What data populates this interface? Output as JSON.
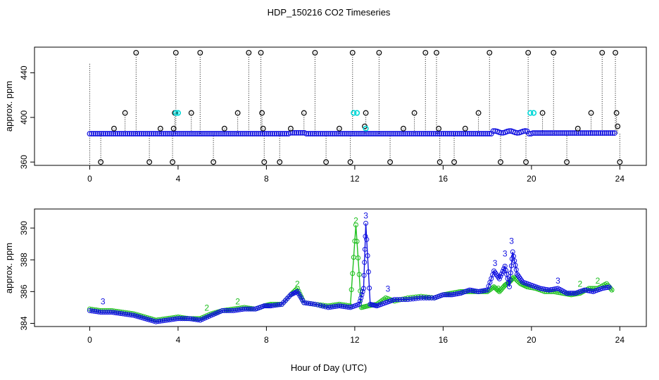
{
  "title": "HDP_150216  CO2 Timeseries",
  "xlabel": "Hour of Day (UTC)",
  "colors": {
    "axis": "#000000",
    "blue": "#1010e0",
    "green": "#20c020",
    "cyan": "#00d8d8",
    "dark": "#111111"
  },
  "chart_data": [
    {
      "type": "scatter",
      "name": "panel-top",
      "ylabel": "approx. ppm",
      "xlim": [
        -2.5,
        25.2
      ],
      "ylim": [
        357,
        463
      ],
      "xticks": [
        0,
        4,
        8,
        12,
        16,
        20,
        24
      ],
      "yticks": [
        360,
        400,
        440
      ],
      "baseline_note": "continuous near 384-387 ppm series, points drawn as circles",
      "outlier_levels": [
        360,
        385,
        394,
        404,
        458
      ],
      "outliers": [
        {
          "x": 0.5,
          "y": 360
        },
        {
          "x": 1.1,
          "y": 390
        },
        {
          "x": 1.6,
          "y": 404
        },
        {
          "x": 2.1,
          "y": 458
        },
        {
          "x": 2.7,
          "y": 360
        },
        {
          "x": 3.2,
          "y": 390
        },
        {
          "x": 3.75,
          "y": 360
        },
        {
          "x": 3.8,
          "y": 390
        },
        {
          "x": 3.85,
          "y": 404
        },
        {
          "x": 3.9,
          "y": 458
        },
        {
          "x": 4.6,
          "y": 404
        },
        {
          "x": 5.0,
          "y": 458
        },
        {
          "x": 5.6,
          "y": 360
        },
        {
          "x": 6.1,
          "y": 390
        },
        {
          "x": 6.7,
          "y": 404
        },
        {
          "x": 7.2,
          "y": 458
        },
        {
          "x": 7.75,
          "y": 458
        },
        {
          "x": 7.8,
          "y": 404
        },
        {
          "x": 7.85,
          "y": 390
        },
        {
          "x": 7.9,
          "y": 360
        },
        {
          "x": 8.6,
          "y": 360
        },
        {
          "x": 9.1,
          "y": 390
        },
        {
          "x": 9.7,
          "y": 404
        },
        {
          "x": 10.2,
          "y": 458
        },
        {
          "x": 10.7,
          "y": 360
        },
        {
          "x": 11.3,
          "y": 390
        },
        {
          "x": 11.8,
          "y": 360
        },
        {
          "x": 11.9,
          "y": 458
        },
        {
          "x": 12.5,
          "y": 404
        },
        {
          "x": 12.45,
          "y": 392
        },
        {
          "x": 13.1,
          "y": 458
        },
        {
          "x": 13.6,
          "y": 360
        },
        {
          "x": 14.2,
          "y": 390
        },
        {
          "x": 14.7,
          "y": 404
        },
        {
          "x": 15.2,
          "y": 458
        },
        {
          "x": 15.7,
          "y": 458
        },
        {
          "x": 15.8,
          "y": 390
        },
        {
          "x": 15.85,
          "y": 360
        },
        {
          "x": 16.5,
          "y": 360
        },
        {
          "x": 17.0,
          "y": 390
        },
        {
          "x": 17.6,
          "y": 404
        },
        {
          "x": 18.1,
          "y": 458
        },
        {
          "x": 18.6,
          "y": 360
        },
        {
          "x": 19.75,
          "y": 360
        },
        {
          "x": 19.85,
          "y": 458
        },
        {
          "x": 20.5,
          "y": 404
        },
        {
          "x": 21.0,
          "y": 458
        },
        {
          "x": 21.6,
          "y": 360
        },
        {
          "x": 22.1,
          "y": 390
        },
        {
          "x": 22.7,
          "y": 404
        },
        {
          "x": 23.2,
          "y": 458
        },
        {
          "x": 23.8,
          "y": 458
        },
        {
          "x": 23.85,
          "y": 404
        },
        {
          "x": 23.9,
          "y": 392
        },
        {
          "x": 24.0,
          "y": 360
        }
      ],
      "cyan_points": [
        {
          "x": 3.9,
          "y": 404
        },
        {
          "x": 4.0,
          "y": 404
        },
        {
          "x": 11.95,
          "y": 404
        },
        {
          "x": 12.1,
          "y": 404
        },
        {
          "x": 19.95,
          "y": 404
        },
        {
          "x": 20.1,
          "y": 404
        },
        {
          "x": 12.5,
          "y": 390
        }
      ]
    },
    {
      "type": "line",
      "name": "panel-bottom",
      "ylabel": "approx. ppm",
      "xlim": [
        -2.5,
        25.2
      ],
      "ylim": [
        383.8,
        391.2
      ],
      "xticks": [
        0,
        4,
        8,
        12,
        16,
        20,
        24
      ],
      "yticks": [
        384,
        386,
        388,
        390
      ],
      "series": [
        {
          "name": "2",
          "symbol": "2",
          "color": "green",
          "x": [
            0,
            0.5,
            1,
            1.5,
            2,
            2.5,
            3,
            3.5,
            4,
            4.5,
            5,
            5.5,
            6,
            6.5,
            7,
            7.5,
            7.9,
            8.2,
            8.7,
            9.1,
            9.4,
            9.7,
            10.2,
            10.8,
            11.3,
            11.8,
            12.05,
            12.3,
            12.6,
            13.0,
            13.4,
            13.8,
            14.4,
            15.0,
            15.6,
            16.0,
            16.4,
            16.8,
            17.2,
            17.6,
            18.0,
            18.3,
            18.55,
            18.8,
            19.0,
            19.2,
            19.5,
            19.8,
            20.2,
            20.6,
            21.0,
            21.4,
            21.8,
            22.2,
            22.6,
            23.0,
            23.4,
            23.7
          ],
          "y": [
            384.9,
            384.8,
            384.8,
            384.7,
            384.6,
            384.4,
            384.2,
            384.3,
            384.4,
            384.3,
            384.3,
            384.6,
            384.8,
            384.9,
            385.0,
            384.9,
            385.1,
            385.2,
            385.2,
            385.8,
            386.2,
            385.3,
            385.2,
            385.1,
            385.2,
            385.1,
            390.2,
            385.0,
            385.1,
            385.2,
            385.6,
            385.4,
            385.6,
            385.7,
            385.6,
            385.8,
            385.9,
            386.0,
            386.0,
            386.0,
            386.0,
            386.3,
            386.0,
            386.4,
            386.6,
            386.9,
            386.5,
            386.3,
            386.2,
            386.0,
            386.0,
            385.9,
            385.8,
            385.9,
            386.2,
            386.2,
            386.5,
            386.0
          ]
        },
        {
          "name": "3",
          "symbol": "3",
          "color": "blue",
          "x": [
            0,
            0.5,
            1,
            1.5,
            2,
            2.5,
            3,
            3.5,
            4,
            4.5,
            5,
            5.5,
            6,
            6.5,
            7,
            7.5,
            7.9,
            8.2,
            8.7,
            9.1,
            9.4,
            9.7,
            10.2,
            10.8,
            11.3,
            11.8,
            12.2,
            12.4,
            12.5,
            12.7,
            13.0,
            13.4,
            13.8,
            14.4,
            15.0,
            15.6,
            16.0,
            16.4,
            16.8,
            17.2,
            17.6,
            18.0,
            18.3,
            18.55,
            18.8,
            19.0,
            19.15,
            19.35,
            19.6,
            20.0,
            20.4,
            20.8,
            21.2,
            21.6,
            22.0,
            22.4,
            22.8,
            23.2,
            23.6
          ],
          "y": [
            384.8,
            384.7,
            384.7,
            384.6,
            384.5,
            384.3,
            384.1,
            384.2,
            384.3,
            384.3,
            384.2,
            384.5,
            384.8,
            384.8,
            384.9,
            384.9,
            385.1,
            385.1,
            385.2,
            385.8,
            386.0,
            385.3,
            385.2,
            385.0,
            385.1,
            385.0,
            385.2,
            386.2,
            390.3,
            385.2,
            385.1,
            385.3,
            385.5,
            385.5,
            385.6,
            385.6,
            385.8,
            385.8,
            385.9,
            386.1,
            386.0,
            386.1,
            387.3,
            386.8,
            387.6,
            386.3,
            388.5,
            387.1,
            386.6,
            386.4,
            386.2,
            386.1,
            386.2,
            385.9,
            385.9,
            386.1,
            386.0,
            386.2,
            386.3
          ]
        }
      ],
      "point_labels": [
        {
          "text": "2",
          "x": 12.05,
          "y": 390.3,
          "color": "green"
        },
        {
          "text": "3",
          "x": 12.5,
          "y": 390.6,
          "color": "blue"
        },
        {
          "text": "3",
          "x": 19.1,
          "y": 389.0,
          "color": "blue"
        },
        {
          "text": "3",
          "x": 18.8,
          "y": 388.2,
          "color": "blue"
        },
        {
          "text": "3",
          "x": 18.35,
          "y": 387.6,
          "color": "blue"
        },
        {
          "text": "3",
          "x": 0.6,
          "y": 385.2,
          "color": "blue"
        },
        {
          "text": "2",
          "x": 9.4,
          "y": 386.3,
          "color": "green"
        },
        {
          "text": "2",
          "x": 5.3,
          "y": 384.8,
          "color": "green"
        },
        {
          "text": "2",
          "x": 6.7,
          "y": 385.2,
          "color": "green"
        },
        {
          "text": "2",
          "x": 18.5,
          "y": 386.0,
          "color": "green"
        },
        {
          "text": "3",
          "x": 21.2,
          "y": 386.5,
          "color": "blue"
        },
        {
          "text": "3",
          "x": 13.5,
          "y": 386.0,
          "color": "blue"
        },
        {
          "text": "2",
          "x": 22.2,
          "y": 386.3,
          "color": "green"
        },
        {
          "text": "2",
          "x": 23.0,
          "y": 386.5,
          "color": "green"
        }
      ]
    }
  ]
}
